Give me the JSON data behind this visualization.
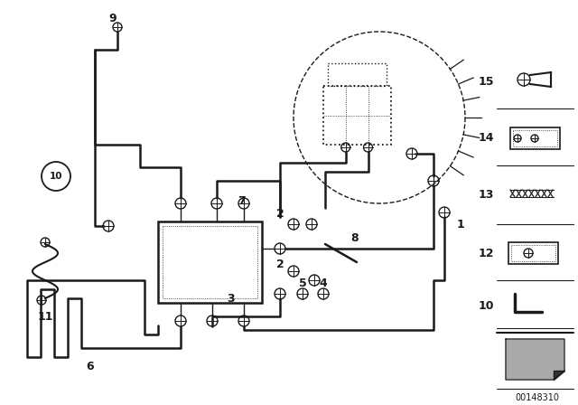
{
  "bg_color": "#ffffff",
  "lc": "#1a1a1a",
  "diagram_number": "00148310",
  "figsize": [
    6.4,
    4.48
  ],
  "dpi": 100
}
